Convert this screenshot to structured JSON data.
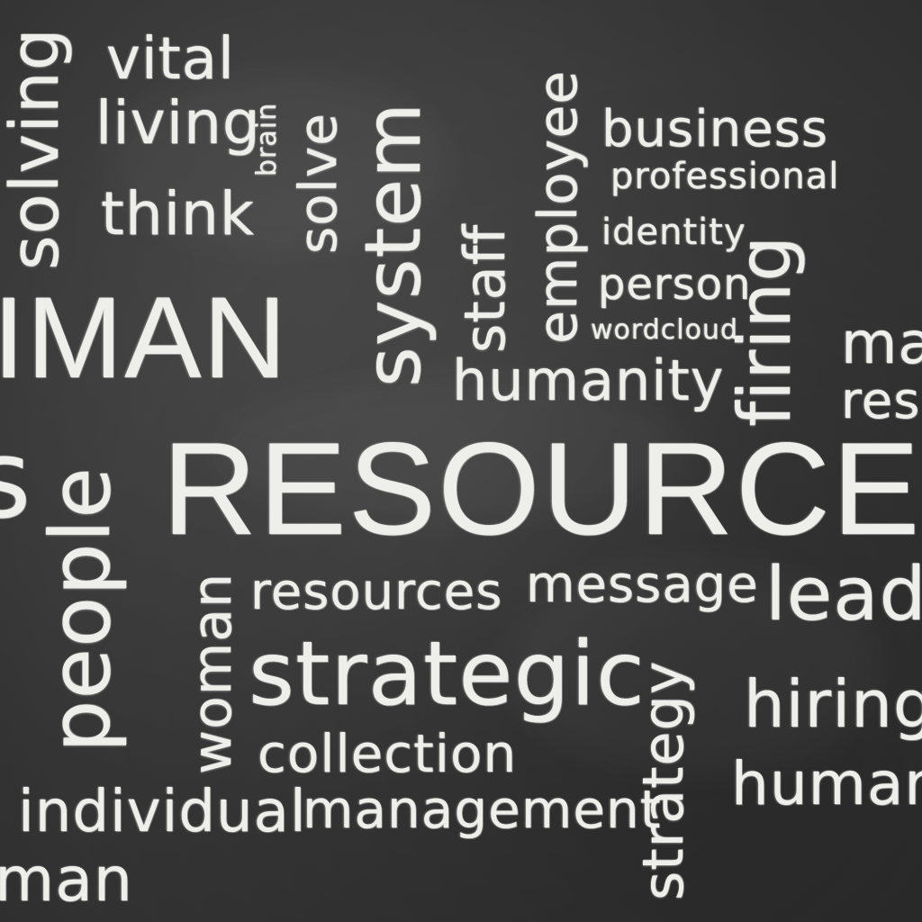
{
  "words": {
    "vital": "vital",
    "living": "living",
    "brain": "brain",
    "think": "think",
    "solving": "solving",
    "solve": "solve",
    "system": "system",
    "staff": "staff",
    "employee": "employee",
    "business": "business",
    "professional": "professional",
    "identity": "identity",
    "person": "person",
    "wordcloud": "wordcloud",
    "firing": "firing",
    "ma": "ma",
    "res": "res",
    "human_big": "IMAN",
    "humanity": "humanity",
    "resource": "RESOURCE",
    "people": "people",
    "woman": "woman",
    "resources": "resources",
    "message": "message",
    "lead": "lead",
    "strategic": "strategic",
    "strategy": "strategy",
    "hiring": "hiring",
    "collection": "collection",
    "human_right": "human",
    "individual": "individual",
    "management": "management",
    "human_bottom": "man",
    "left_edge_s": "s"
  }
}
